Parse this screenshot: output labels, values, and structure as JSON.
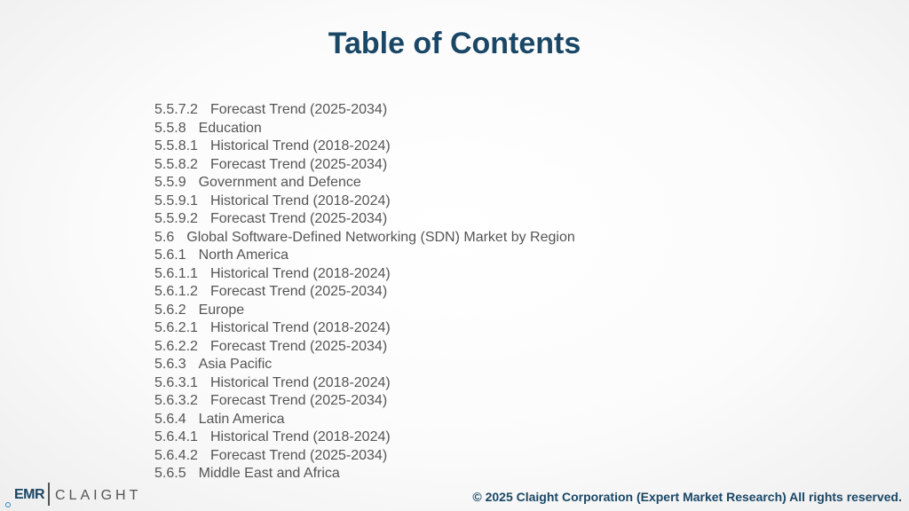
{
  "title": "Table of Contents",
  "toc": [
    {
      "num": "5.5.7.2",
      "text": "Forecast Trend (2025-2034)"
    },
    {
      "num": "5.5.8",
      "text": "Education"
    },
    {
      "num": "5.5.8.1",
      "text": "Historical Trend (2018-2024)"
    },
    {
      "num": "5.5.8.2",
      "text": "Forecast Trend (2025-2034)"
    },
    {
      "num": "5.5.9",
      "text": "Government and Defence"
    },
    {
      "num": "5.5.9.1",
      "text": "Historical Trend (2018-2024)"
    },
    {
      "num": "5.5.9.2",
      "text": "Forecast Trend (2025-2034)"
    },
    {
      "num": "5.6",
      "text": "Global Software-Defined Networking (SDN) Market by Region"
    },
    {
      "num": "5.6.1",
      "text": "North America"
    },
    {
      "num": "5.6.1.1",
      "text": "Historical Trend (2018-2024)"
    },
    {
      "num": "5.6.1.2",
      "text": "Forecast Trend (2025-2034)"
    },
    {
      "num": "5.6.2",
      "text": "Europe"
    },
    {
      "num": "5.6.2.1",
      "text": "Historical Trend (2018-2024)"
    },
    {
      "num": "5.6.2.2",
      "text": "Forecast Trend (2025-2034)"
    },
    {
      "num": "5.6.3",
      "text": "Asia Pacific"
    },
    {
      "num": "5.6.3.1",
      "text": "Historical Trend (2018-2024)"
    },
    {
      "num": "5.6.3.2",
      "text": "Forecast Trend (2025-2034)"
    },
    {
      "num": "5.6.4",
      "text": "Latin America"
    },
    {
      "num": "5.6.4.1",
      "text": "Historical Trend (2018-2024)"
    },
    {
      "num": "5.6.4.2",
      "text": "Forecast Trend (2025-2034)"
    },
    {
      "num": "5.6.5",
      "text": "Middle East and Africa"
    }
  ],
  "footer": {
    "logo_left": "EMR",
    "logo_right": "CLAIGHT",
    "copyright": "© 2025 Claight Corporation (Expert Market Research) All rights reserved."
  },
  "colors": {
    "title": "#1a4766",
    "body_text": "#555555",
    "accent": "#2d89c8"
  }
}
